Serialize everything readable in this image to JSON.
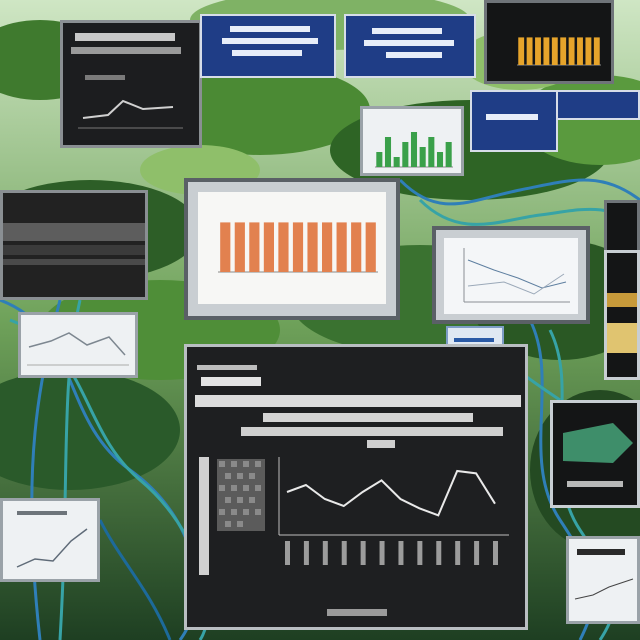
{
  "scene": {
    "colors": {
      "foliage_dark": "#1f4a1c",
      "foliage_mid": "#3f7a2e",
      "foliage_light": "#8fbf6a",
      "cable_blue": "#2f7fb8",
      "cable_teal": "#37a3a6",
      "navy_panel": "#1f3d86",
      "bar_orange": "#e2814f",
      "bar_gold": "#e6a42b",
      "bar_green": "#3aa04a"
    }
  },
  "chart_data": [
    {
      "type": "bar",
      "values": [
        8,
        8,
        8,
        8,
        8,
        8,
        8,
        8,
        8,
        8,
        8
      ],
      "bar_color": "#e2814f",
      "ylim": [
        0,
        10
      ]
    },
    {
      "type": "line",
      "values": [
        30,
        36,
        24,
        18,
        30,
        40,
        24,
        16,
        10,
        48,
        46,
        20
      ],
      "ylim": [
        0,
        60
      ],
      "line_color": "#e9e9e9"
    },
    {
      "type": "bar",
      "values": [
        6,
        6,
        6,
        6,
        6,
        6,
        6,
        6,
        6,
        6
      ],
      "bar_color": "#e6a42b",
      "ylim": [
        0,
        10
      ]
    },
    {
      "type": "bar",
      "values": [
        3,
        6,
        2,
        5,
        7,
        4,
        6,
        3,
        5
      ],
      "bar_color": "#3aa04a",
      "ylim": [
        0,
        10
      ]
    }
  ]
}
